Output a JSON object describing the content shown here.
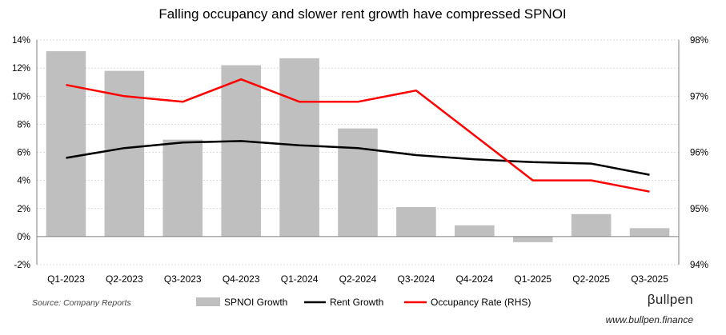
{
  "chart_data": {
    "type": "bar+line",
    "title": "Falling occupancy and slower rent growth have compressed SPNOI",
    "categories": [
      "Q1-2023",
      "Q2-2023",
      "Q3-2023",
      "Q4-2023",
      "Q1-2024",
      "Q2-2024",
      "Q3-2024",
      "Q4-2024",
      "Q1-2025",
      "Q2-2025",
      "Q3-2025"
    ],
    "left_axis": {
      "min": -2,
      "max": 14,
      "step": 2,
      "ticks": [
        "-2%",
        "0%",
        "2%",
        "4%",
        "6%",
        "8%",
        "10%",
        "12%",
        "14%"
      ]
    },
    "right_axis": {
      "min": 94,
      "max": 98,
      "step": 1,
      "ticks": [
        "94%",
        "95%",
        "96%",
        "97%",
        "98%"
      ]
    },
    "series": [
      {
        "name": "SPNOI Growth",
        "type": "bar",
        "axis": "left",
        "color": "#bfbfbf",
        "values": [
          13.2,
          11.8,
          6.9,
          12.2,
          12.7,
          7.7,
          2.1,
          0.8,
          -0.4,
          1.6,
          0.6
        ]
      },
      {
        "name": "Rent Growth",
        "type": "line",
        "axis": "left",
        "color": "#000000",
        "values": [
          5.6,
          6.3,
          6.7,
          6.8,
          6.5,
          6.3,
          5.8,
          5.5,
          5.3,
          5.2,
          4.4
        ]
      },
      {
        "name": "Occupancy Rate (RHS)",
        "type": "line",
        "axis": "right",
        "color": "#ff0000",
        "values": [
          97.2,
          97.0,
          96.9,
          97.3,
          96.9,
          96.9,
          97.1,
          96.3,
          95.5,
          95.5,
          95.3
        ]
      }
    ],
    "grid": true,
    "legend": "bottom"
  },
  "source": "Source: Company Reports",
  "brand": {
    "name": "βullpen",
    "url": "www.bullpen.finance"
  }
}
